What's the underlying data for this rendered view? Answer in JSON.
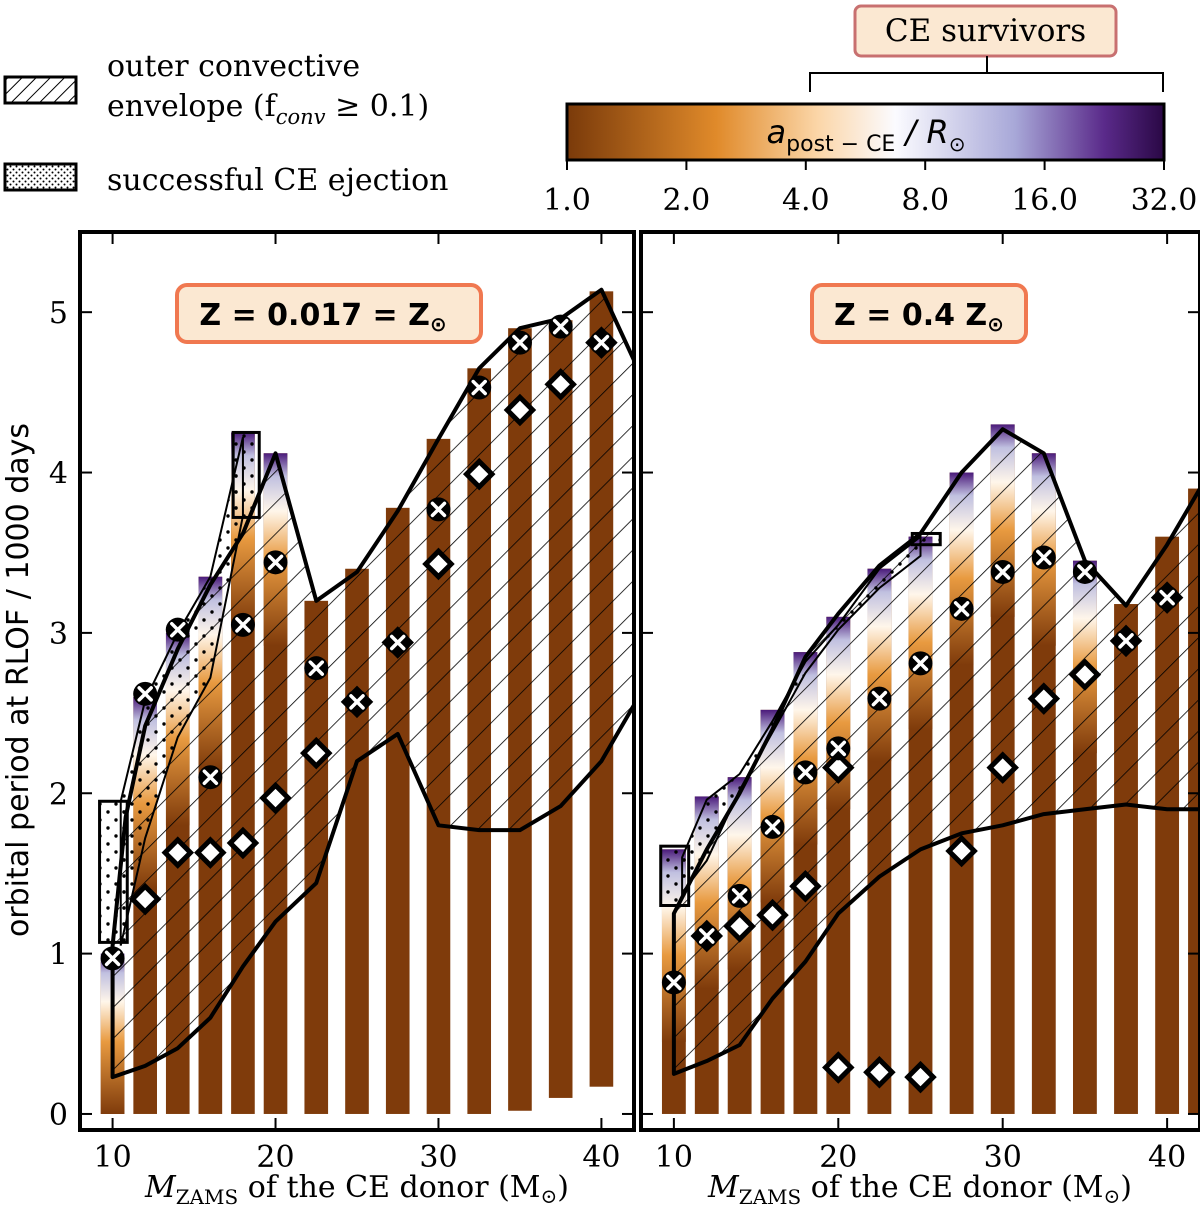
{
  "figure": {
    "legend": {
      "hatch_label_line1": "outer convective",
      "hatch_label_line2": "envelope (f",
      "hatch_label_sub": "conv",
      "hatch_label_tail": " ≥ 0.1)",
      "dots_label": "successful CE ejection"
    },
    "colorbar": {
      "survivors_label": "CE survivors",
      "label_main": "a",
      "label_sub": "post − CE",
      "label_tail": " / R",
      "ticks": [
        "1.0",
        "2.0",
        "4.0",
        "8.0",
        "16.0",
        "32.0"
      ],
      "survivor_range": [
        4.0,
        32.0
      ],
      "colors": [
        "#7a3a0a",
        "#f0a040",
        "#ffffff",
        "#b0b0d8",
        "#3a0a60"
      ]
    },
    "colors": {
      "bar": "#7f3b0b",
      "badge_fill": "#fbe8d2",
      "badge_border": "#f07850"
    }
  },
  "chart_data": [
    {
      "type": "bar",
      "panel": "left",
      "title": "Z = 0.017 = Z",
      "xlabel_main": "M",
      "xlabel_sub": "ZAMS",
      "xlabel_tail": " of the CE donor (M",
      "xlabel_end": ")",
      "ylabel": "orbital period at RLOF / 1000 days",
      "xlim": [
        8,
        42
      ],
      "ylim": [
        -0.1,
        5.5
      ],
      "xticks": [
        10,
        20,
        30,
        40
      ],
      "yticks": [
        0,
        1,
        2,
        3,
        4,
        5
      ],
      "bars": [
        {
          "m": 10,
          "low": 0.0,
          "high": 0.95,
          "grad_top": 1.0
        },
        {
          "m": 12,
          "low": 0.0,
          "high": 2.6,
          "grad_top": 2.6
        },
        {
          "m": 14,
          "low": 0.0,
          "high": 3.0,
          "grad_top": 3.0
        },
        {
          "m": 16,
          "low": 0.0,
          "high": 3.35,
          "grad_top": 3.35
        },
        {
          "m": 18,
          "low": 0.0,
          "high": 4.25,
          "grad_top": 4.25
        },
        {
          "m": 20,
          "low": 0.0,
          "high": 4.12,
          "grad_top": 4.12
        },
        {
          "m": 22.5,
          "low": 0.0,
          "high": 3.2,
          "grad_top": 0
        },
        {
          "m": 25,
          "low": 0.0,
          "high": 3.4,
          "grad_top": 0
        },
        {
          "m": 27.5,
          "low": 0.0,
          "high": 3.78,
          "grad_top": 0
        },
        {
          "m": 30,
          "low": 0.0,
          "high": 4.21,
          "grad_top": 0
        },
        {
          "m": 32.5,
          "low": 0.0,
          "high": 4.65,
          "grad_top": 0
        },
        {
          "m": 35,
          "low": 0.02,
          "high": 4.9,
          "grad_top": 0
        },
        {
          "m": 37.5,
          "low": 0.1,
          "high": 4.95,
          "grad_top": 0
        },
        {
          "m": 40,
          "low": 0.17,
          "high": 5.13,
          "grad_top": 0
        }
      ],
      "cross_markers": [
        [
          10,
          0.97
        ],
        [
          12,
          2.62
        ],
        [
          14,
          3.02
        ],
        [
          16,
          2.1
        ],
        [
          18,
          3.05
        ],
        [
          20,
          3.44
        ],
        [
          22.5,
          2.78
        ],
        [
          25,
          2.57
        ],
        [
          27.5,
          2.94
        ],
        [
          30,
          3.77
        ],
        [
          32.5,
          4.53
        ],
        [
          35,
          4.81
        ],
        [
          37.5,
          4.91
        ],
        [
          40,
          4.81
        ]
      ],
      "diamond_markers": [
        [
          12,
          1.34
        ],
        [
          14,
          1.63
        ],
        [
          16,
          1.63
        ],
        [
          18,
          1.69
        ],
        [
          20,
          1.97
        ],
        [
          22.5,
          2.25
        ],
        [
          25,
          2.57
        ],
        [
          27.5,
          2.94
        ],
        [
          30,
          3.43
        ],
        [
          32.5,
          3.99
        ],
        [
          35,
          4.39
        ],
        [
          37.5,
          4.55
        ],
        [
          40,
          4.81
        ]
      ],
      "hatch_upper": [
        [
          10,
          0.23
        ],
        [
          10,
          1.05
        ],
        [
          10.8,
          1.85
        ],
        [
          12,
          2.42
        ],
        [
          14,
          2.9
        ],
        [
          16,
          3.3
        ],
        [
          18,
          3.62
        ],
        [
          20,
          4.12
        ],
        [
          22.5,
          3.2
        ],
        [
          25,
          3.38
        ],
        [
          27.5,
          3.76
        ],
        [
          30,
          4.21
        ],
        [
          32.5,
          4.65
        ],
        [
          35,
          4.9
        ],
        [
          37.5,
          4.96
        ],
        [
          40,
          5.14
        ],
        [
          42,
          4.7
        ]
      ],
      "hatch_lower": [
        [
          42,
          2.55
        ],
        [
          40,
          2.2
        ],
        [
          37.5,
          1.92
        ],
        [
          35,
          1.77
        ],
        [
          32.5,
          1.77
        ],
        [
          30,
          1.8
        ],
        [
          27.5,
          2.37
        ],
        [
          25,
          2.2
        ],
        [
          22.5,
          1.44
        ],
        [
          20,
          1.2
        ],
        [
          18,
          0.92
        ],
        [
          16,
          0.6
        ],
        [
          14,
          0.41
        ],
        [
          12,
          0.3
        ],
        [
          10,
          0.23
        ]
      ],
      "dots_upper": [
        [
          10.5,
          1.95
        ],
        [
          12,
          2.58
        ],
        [
          14,
          3.0
        ],
        [
          16,
          3.35
        ],
        [
          18,
          4.22
        ]
      ],
      "dots_lower": [
        [
          18,
          3.73
        ],
        [
          16,
          2.72
        ],
        [
          14,
          2.35
        ],
        [
          12,
          1.72
        ],
        [
          10.5,
          1.05
        ]
      ],
      "box_region": [
        [
          9.2,
          1.07
        ],
        [
          10.9,
          1.95
        ]
      ],
      "box_region2": [
        [
          17.4,
          3.72
        ],
        [
          19,
          4.25
        ]
      ]
    },
    {
      "type": "bar",
      "panel": "right",
      "title": "Z = 0.4 Z",
      "xlabel_main": "M",
      "xlabel_sub": "ZAMS",
      "xlabel_tail": " of the CE donor (M",
      "xlabel_end": ")",
      "xlim": [
        8,
        42
      ],
      "ylim": [
        -0.1,
        5.5
      ],
      "xticks": [
        10,
        20,
        30,
        40
      ],
      "yticks": [
        0,
        1,
        2,
        3,
        4,
        5
      ],
      "bars": [
        {
          "m": 10,
          "low": 0.0,
          "high": 1.65,
          "grad_top": 1.65
        },
        {
          "m": 12,
          "low": 0.0,
          "high": 1.98,
          "grad_top": 1.98
        },
        {
          "m": 14,
          "low": 0.0,
          "high": 2.1,
          "grad_top": 2.1
        },
        {
          "m": 16,
          "low": 0.0,
          "high": 2.52,
          "grad_top": 2.52
        },
        {
          "m": 18,
          "low": 0.0,
          "high": 2.88,
          "grad_top": 2.88
        },
        {
          "m": 20,
          "low": 0.0,
          "high": 3.1,
          "grad_top": 3.1
        },
        {
          "m": 22.5,
          "low": 0.0,
          "high": 3.4,
          "grad_top": 3.4
        },
        {
          "m": 25,
          "low": 0.0,
          "high": 3.6,
          "grad_top": 3.6
        },
        {
          "m": 27.5,
          "low": 0.0,
          "high": 4.0,
          "grad_top": 4.0
        },
        {
          "m": 30,
          "low": 0.0,
          "high": 4.3,
          "grad_top": 4.3
        },
        {
          "m": 32.5,
          "low": 0.0,
          "high": 4.12,
          "grad_top": 4.12
        },
        {
          "m": 35,
          "low": 0.0,
          "high": 3.45,
          "grad_top": 3.45
        },
        {
          "m": 37.5,
          "low": 0.0,
          "high": 3.18,
          "grad_top": 0
        },
        {
          "m": 40,
          "low": 0.0,
          "high": 3.6,
          "grad_top": 0
        },
        {
          "m": 42,
          "low": 0.0,
          "high": 3.9,
          "grad_top": 0
        }
      ],
      "cross_markers": [
        [
          10,
          0.82
        ],
        [
          12,
          1.11
        ],
        [
          14,
          1.36
        ],
        [
          16,
          1.79
        ],
        [
          18,
          2.13
        ],
        [
          20,
          2.28
        ],
        [
          22.5,
          2.59
        ],
        [
          25,
          2.81
        ],
        [
          27.5,
          3.15
        ],
        [
          30,
          3.38
        ],
        [
          32.5,
          3.47
        ],
        [
          35,
          3.38
        ],
        [
          37.5,
          2.95
        ],
        [
          40,
          3.22
        ]
      ],
      "diamond_markers": [
        [
          12,
          1.11
        ],
        [
          14,
          1.17
        ],
        [
          16,
          1.24
        ],
        [
          18,
          1.42
        ],
        [
          20,
          0.29
        ],
        [
          20,
          2.16
        ],
        [
          22.5,
          0.26
        ],
        [
          25,
          0.23
        ],
        [
          27.5,
          1.64
        ],
        [
          30,
          2.16
        ],
        [
          32.5,
          2.59
        ],
        [
          35,
          2.74
        ],
        [
          37.5,
          2.95
        ],
        [
          40,
          3.22
        ]
      ],
      "hatch_upper": [
        [
          10,
          0.25
        ],
        [
          10,
          1.25
        ],
        [
          12,
          1.65
        ],
        [
          14,
          2.0
        ],
        [
          16,
          2.4
        ],
        [
          18,
          2.85
        ],
        [
          20,
          3.12
        ],
        [
          22.5,
          3.42
        ],
        [
          25,
          3.62
        ],
        [
          27.5,
          4.0
        ],
        [
          30,
          4.27
        ],
        [
          32.5,
          4.12
        ],
        [
          35,
          3.45
        ],
        [
          37.5,
          3.17
        ],
        [
          40,
          3.55
        ],
        [
          42,
          3.9
        ]
      ],
      "hatch_lower": [
        [
          42,
          1.9
        ],
        [
          40,
          1.9
        ],
        [
          37.5,
          1.93
        ],
        [
          35,
          1.9
        ],
        [
          32.5,
          1.87
        ],
        [
          30,
          1.8
        ],
        [
          27.5,
          1.75
        ],
        [
          25,
          1.65
        ],
        [
          22.5,
          1.48
        ],
        [
          20,
          1.25
        ],
        [
          18,
          0.95
        ],
        [
          16,
          0.72
        ],
        [
          14,
          0.43
        ],
        [
          12,
          0.33
        ],
        [
          10,
          0.25
        ]
      ],
      "dots_upper": [
        [
          10.5,
          1.6
        ],
        [
          12,
          1.96
        ],
        [
          14,
          2.12
        ],
        [
          16,
          2.45
        ],
        [
          18,
          2.82
        ],
        [
          20,
          3.05
        ],
        [
          22.5,
          3.4
        ],
        [
          25,
          3.6
        ]
      ],
      "dots_lower": [
        [
          25,
          3.48
        ],
        [
          22.5,
          3.28
        ],
        [
          20,
          3.02
        ],
        [
          18,
          2.75
        ],
        [
          16,
          2.38
        ],
        [
          14,
          2.02
        ],
        [
          12,
          1.58
        ],
        [
          10.5,
          1.38
        ]
      ],
      "box_region": [
        [
          9.2,
          1.3
        ],
        [
          10.9,
          1.67
        ]
      ],
      "box_region2": [
        [
          24.5,
          3.55
        ],
        [
          26.2,
          3.62
        ]
      ]
    }
  ]
}
